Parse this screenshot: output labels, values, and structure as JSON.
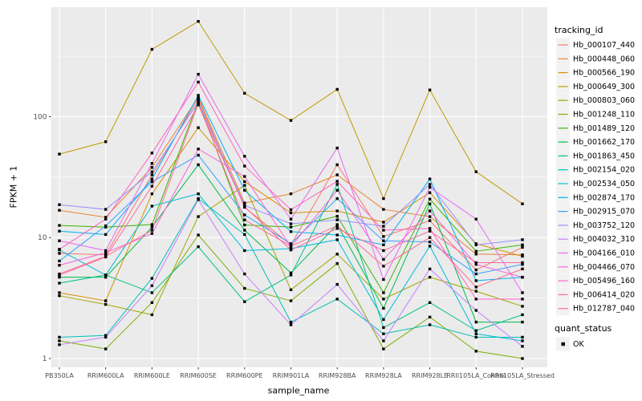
{
  "figure": {
    "background": "#FFFFFF",
    "panel_background": "#EBEBEB",
    "gridline_color": "#FFFFFF",
    "tick_color": "#333333",
    "tick_label_color": "#4D4D4D",
    "legend_key_background": "#F2F2F2"
  },
  "axes": {
    "x_title": "sample_name",
    "y_title": "FPKM + 1"
  },
  "legend": {
    "tracking_title": "tracking_id",
    "quant_title": "quant_status",
    "quant_items": [
      {
        "label": "OK",
        "symbol": "black-square"
      }
    ]
  },
  "chart_data": {
    "type": "line",
    "xlabel": "sample_name",
    "ylabel": "FPKM + 1",
    "y_scale": "log10",
    "y_ticks": [
      1,
      10,
      100
    ],
    "y_minor_ticks": [
      3.162,
      31.62,
      316.2
    ],
    "ylim": [
      0.85,
      790
    ],
    "grid": true,
    "legend_position": "right",
    "point_shape": "filled-square",
    "point_color": "#000000",
    "categories": [
      "PB350LA",
      "RRIM600LA",
      "RRIM600LE",
      "RRIM600SE",
      "RRIM600PE",
      "RRIM901LA",
      "RRIM928BA",
      "RRIM928LA",
      "RRIM928LE",
      "RRII105LA_Control",
      "RRII105LA_Stressed"
    ],
    "series": [
      {
        "name": "Hb_000107_440",
        "color": "#F8766D",
        "values": [
          7.4,
          7.2,
          33,
          140,
          17.8,
          8.7,
          40,
          10.2,
          13.8,
          5.4,
          8.3
        ]
      },
      {
        "name": "Hb_000448_060",
        "color": "#EA8331",
        "values": [
          16.8,
          14.7,
          38,
          145,
          19.3,
          23,
          33,
          17.1,
          14.9,
          7.3,
          7.2
        ]
      },
      {
        "name": "Hb_000566_190",
        "color": "#D89000",
        "values": [
          3.5,
          3.0,
          23,
          81,
          29,
          16,
          16.6,
          13.4,
          23.5,
          8.9,
          7.0
        ]
      },
      {
        "name": "Hb_000649_300",
        "color": "#C09B00",
        "values": [
          49,
          62,
          360,
          613,
          156,
          93,
          168,
          21,
          166,
          35,
          19
        ]
      },
      {
        "name": "Hb_000803_060",
        "color": "#A3A500",
        "values": [
          3.3,
          2.8,
          2.3,
          14.9,
          27,
          3.7,
          7.3,
          3.1,
          4.7,
          3.6,
          2.7
        ]
      },
      {
        "name": "Hb_001248_110",
        "color": "#7CAE00",
        "values": [
          1.4,
          1.2,
          2.9,
          10.5,
          3.8,
          3.0,
          6.1,
          1.2,
          2.2,
          1.15,
          1.0
        ]
      },
      {
        "name": "Hb_001489_120",
        "color": "#39B600",
        "values": [
          12.6,
          12.2,
          12.8,
          135,
          12.7,
          12.2,
          15,
          3.5,
          20.8,
          7.7,
          8.7
        ]
      },
      {
        "name": "Hb_001662_170",
        "color": "#00BB4E",
        "values": [
          4.7,
          4.7,
          12.2,
          40,
          11.5,
          5.1,
          12.8,
          2.6,
          19,
          2.0,
          2.0
        ]
      },
      {
        "name": "Hb_001863_450",
        "color": "#00C087",
        "values": [
          4.2,
          4.9,
          3.5,
          8.4,
          2.95,
          4.9,
          27.5,
          1.8,
          2.9,
          1.7,
          2.3
        ]
      },
      {
        "name": "Hb_002154_020",
        "color": "#00C0B2",
        "values": [
          1.5,
          1.55,
          4.6,
          21,
          10.6,
          2.0,
          3.1,
          1.6,
          1.9,
          1.5,
          1.5
        ]
      },
      {
        "name": "Hb_002534_050",
        "color": "#00BCD8",
        "values": [
          7.9,
          4.9,
          18.2,
          23,
          7.8,
          8.1,
          9.6,
          2.1,
          8.5,
          1.6,
          1.4
        ]
      },
      {
        "name": "Hb_002874_170",
        "color": "#00B0F6",
        "values": [
          11.3,
          10.6,
          30.5,
          150,
          24.6,
          11.2,
          10.5,
          8.7,
          30.5,
          4.4,
          4.7
        ]
      },
      {
        "name": "Hb_002915_070",
        "color": "#35A2FF",
        "values": [
          6.4,
          12.5,
          28.9,
          48,
          15.4,
          8.9,
          21,
          9.4,
          9.2,
          5.0,
          6.0
        ]
      },
      {
        "name": "Hb_003752_120",
        "color": "#9590FF",
        "values": [
          18.7,
          17.1,
          35,
          132,
          18.5,
          13,
          14,
          12.4,
          27.5,
          8.7,
          9.6
        ]
      },
      {
        "name": "Hb_004032_310",
        "color": "#C77CFF",
        "values": [
          1.3,
          1.5,
          4.0,
          20.6,
          5.0,
          1.9,
          4.1,
          1.4,
          5.5,
          2.5,
          1.26
        ]
      },
      {
        "name": "Hb_004166_010",
        "color": "#E76BF3",
        "values": [
          9.4,
          7.8,
          41,
          224,
          47,
          14.2,
          55,
          4.5,
          26,
          14.2,
          3.5
        ]
      },
      {
        "name": "Hb_004466_070",
        "color": "#FA62DB",
        "values": [
          5.9,
          7.5,
          10.8,
          54,
          32,
          8.4,
          24.6,
          6.6,
          16.6,
          6.0,
          4.7
        ]
      },
      {
        "name": "Hb_005496_160",
        "color": "#FF61C3",
        "values": [
          8.0,
          14.2,
          50,
          193,
          39,
          17,
          29.2,
          11.5,
          11.9,
          3.1,
          3.1
        ]
      },
      {
        "name": "Hb_006414_020",
        "color": "#FF67A4",
        "values": [
          4.9,
          6.9,
          26.6,
          125,
          18,
          7.9,
          11.9,
          7.8,
          11.3,
          6.2,
          6.2
        ]
      },
      {
        "name": "Hb_012787_040",
        "color": "#FF6C92",
        "values": [
          5.0,
          7.0,
          11.5,
          128,
          14,
          8.5,
          12.5,
          5.8,
          10,
          3.9,
          5.5
        ]
      }
    ]
  }
}
